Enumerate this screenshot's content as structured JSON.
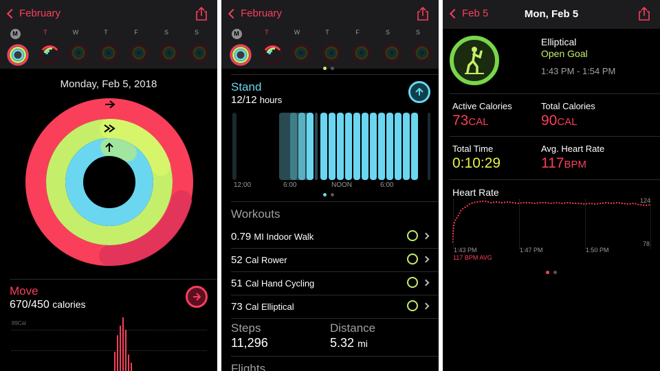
{
  "screen1": {
    "back_label": "February",
    "days": [
      "M",
      "T",
      "W",
      "T",
      "F",
      "S",
      "S"
    ],
    "date": "Monday, Feb 5, 2018",
    "move": {
      "title": "Move",
      "value": "670/450",
      "unit": "calories"
    },
    "chart_ylabel": "89Cal",
    "colors": {
      "move": "#fa3f5a",
      "exercise": "#c5ef6a",
      "stand": "#6ad6f0"
    }
  },
  "screen2": {
    "back_label": "February",
    "days": [
      "M",
      "T",
      "W",
      "T",
      "F",
      "S",
      "S"
    ],
    "stand": {
      "title": "Stand",
      "value": "12/12",
      "unit": "hours"
    },
    "stand_axis": [
      "12:00",
      "6:00",
      "NOON",
      "6:00"
    ],
    "workouts_title": "Workouts",
    "workouts": [
      {
        "value": "0.79",
        "label": "MI Indoor Walk"
      },
      {
        "value": "52",
        "label": "Cal Rower"
      },
      {
        "value": "51",
        "label": "Cal Hand Cycling"
      },
      {
        "value": "73",
        "label": "Cal Elliptical"
      }
    ],
    "steps": {
      "label": "Steps",
      "value": "11,296"
    },
    "distance": {
      "label": "Distance",
      "value": "5.32",
      "unit": "mi"
    },
    "flights_label": "Flights"
  },
  "screen3": {
    "back_label": "Feb 5",
    "title": "Mon, Feb 5",
    "workout": {
      "name": "Elliptical",
      "goal": "Open Goal",
      "time_range": "1:43 PM - 1:54 PM"
    },
    "metrics": {
      "active_calories": {
        "label": "Active Calories",
        "value": "73",
        "unit": "CAL"
      },
      "total_calories": {
        "label": "Total Calories",
        "value": "90",
        "unit": "CAL"
      },
      "total_time": {
        "label": "Total Time",
        "value": "0:10:29"
      },
      "avg_heart_rate": {
        "label": "Avg. Heart Rate",
        "value": "117",
        "unit": "BPM"
      }
    },
    "heart_rate": {
      "title": "Heart Rate",
      "max": "124",
      "min": "78",
      "x_labels": [
        "1:43 PM",
        "1:47 PM",
        "1:50 PM"
      ],
      "avg_label": "117 BPM AVG"
    }
  }
}
